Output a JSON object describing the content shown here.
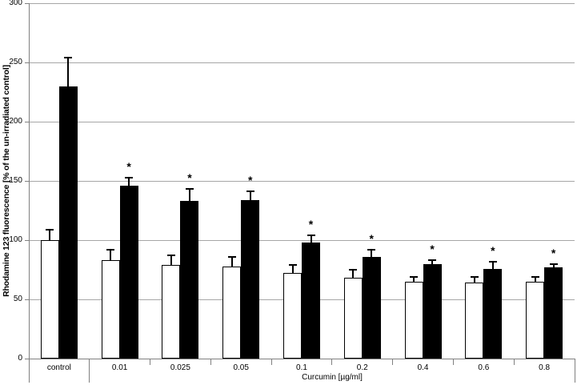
{
  "figure": {
    "background": "#ffffff"
  },
  "chart_data": {
    "type": "bar",
    "title": "",
    "categories": [
      "control",
      "0.01",
      "0.025",
      "0.05",
      "0.1",
      "0.2",
      "0.4",
      "0.6",
      "0.8"
    ],
    "series": [
      {
        "name": "white-bars",
        "color": "#ffffff",
        "values": [
          100,
          83,
          79,
          78,
          72,
          68,
          65,
          64,
          65
        ],
        "errors": [
          9,
          9,
          8,
          8,
          7,
          7,
          4,
          5,
          4
        ],
        "significance": [
          "",
          "",
          "",
          "",
          "",
          "",
          "",
          "",
          ""
        ]
      },
      {
        "name": "black-bars",
        "color": "#000000",
        "values": [
          230,
          146,
          133,
          134,
          98,
          86,
          80,
          76,
          77
        ],
        "errors": [
          24,
          7,
          10,
          7,
          6,
          6,
          3,
          6,
          3
        ],
        "significance": [
          "",
          "*",
          "*",
          "*",
          "*",
          "*",
          "*",
          "*",
          "*"
        ]
      }
    ],
    "ylabel": "Rhodamine 123 fluorescence [% of the un-irradiated control]",
    "xlabel": "Curcumin [µg/ml]",
    "xlabel_spans_categories": [
      "0.01",
      "0.025",
      "0.05",
      "0.1",
      "0.2",
      "0.4",
      "0.6",
      "0.8"
    ],
    "ylim": [
      0,
      300
    ],
    "yticks": [
      0,
      50,
      100,
      150,
      200,
      250,
      300
    ],
    "grid": "horizontal",
    "legend": "none",
    "error_bars": true,
    "grid_color": "#a6a6a6",
    "axis_color": "#808080",
    "bar_border_color": "#000000"
  }
}
